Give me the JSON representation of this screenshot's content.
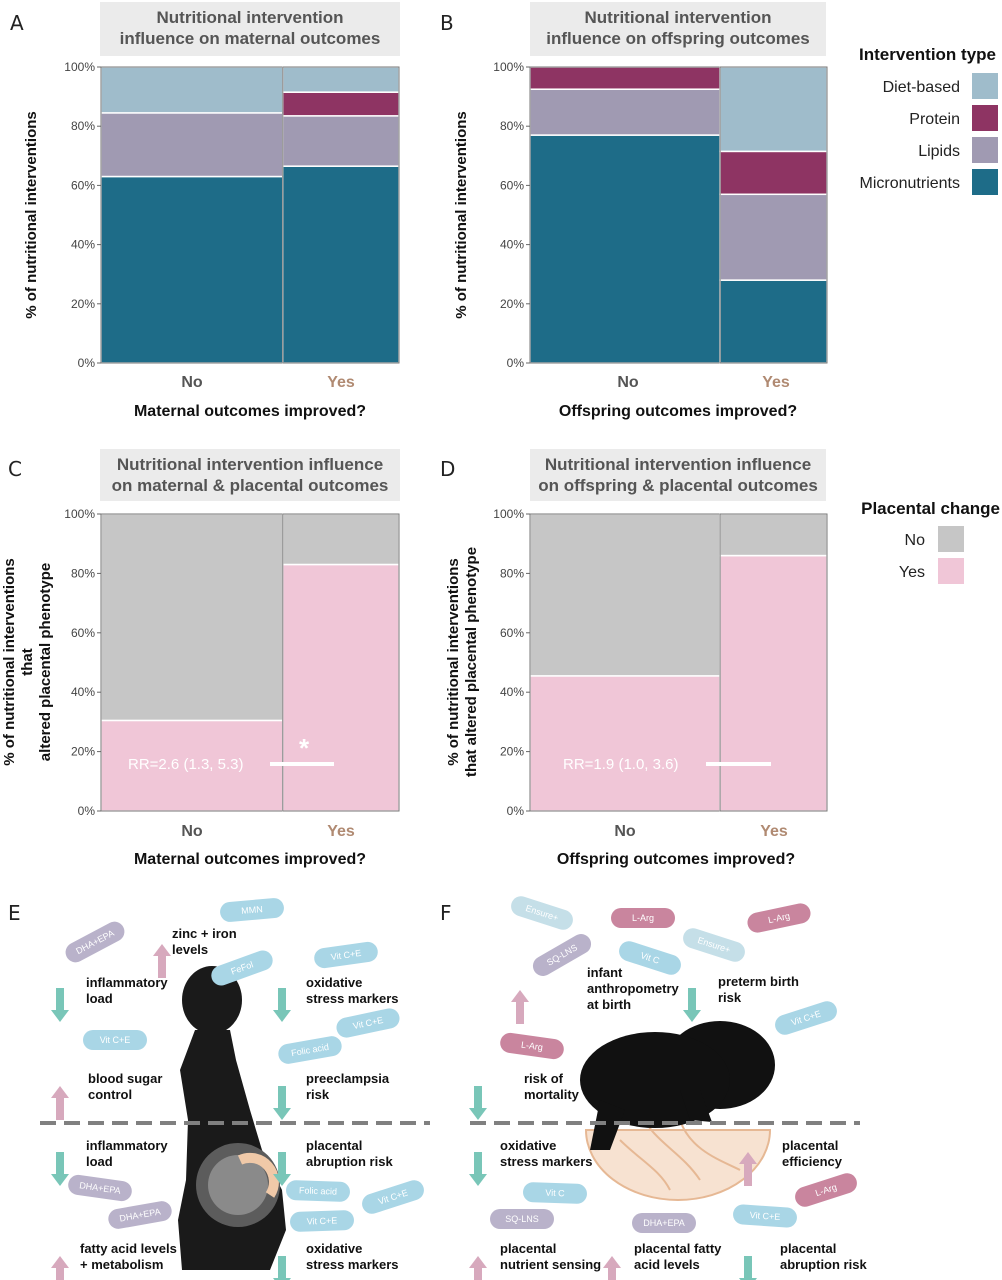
{
  "legend_intervention": {
    "title": "Intervention type",
    "items": [
      {
        "label": "Diet-based",
        "color": "#9fbccb"
      },
      {
        "label": "Protein",
        "color": "#8e3463"
      },
      {
        "label": "Lipids",
        "color": "#a09ab2"
      },
      {
        "label": "Micronutrients",
        "color": "#1e6c88"
      }
    ]
  },
  "legend_placental": {
    "title": "Placental change",
    "items": [
      {
        "label": "No",
        "color": "#c6c6c6"
      },
      {
        "label": "Yes",
        "color": "#f0c6d7"
      }
    ]
  },
  "chart_data": [
    {
      "panel": "A",
      "type": "bar",
      "stacked": true,
      "mosaic": true,
      "title": "Nutritional intervention influence on maternal outcomes",
      "title_lines": [
        "Nutritional intervention",
        "influence on maternal outcomes"
      ],
      "ylabel_lines": [
        "% of nutritional interventions"
      ],
      "xlabel": "Maternal outcomes improved?",
      "categories": [
        "No",
        "Yes"
      ],
      "category_widths": [
        0.61,
        0.39
      ],
      "y_ticks": [
        "0%",
        "20%",
        "40%",
        "60%",
        "80%",
        "100%"
      ],
      "ylim": [
        0,
        100
      ],
      "series": [
        {
          "name": "Micronutrients",
          "values": [
            63,
            66.5
          ]
        },
        {
          "name": "Lipids",
          "values": [
            21.5,
            17
          ]
        },
        {
          "name": "Protein",
          "values": [
            0,
            8
          ]
        },
        {
          "name": "Diet-based",
          "values": [
            15.5,
            8.5
          ]
        }
      ]
    },
    {
      "panel": "B",
      "type": "bar",
      "stacked": true,
      "mosaic": true,
      "title": "Nutritional intervention influence on offspring outcomes",
      "title_lines": [
        "Nutritional intervention",
        "influence on offspring outcomes"
      ],
      "ylabel_lines": [
        "% of nutritional interventions"
      ],
      "xlabel": "Offspring outcomes improved?",
      "categories": [
        "No",
        "Yes"
      ],
      "category_widths": [
        0.64,
        0.36
      ],
      "y_ticks": [
        "0%",
        "20%",
        "40%",
        "60%",
        "80%",
        "100%"
      ],
      "ylim": [
        0,
        100
      ],
      "series": [
        {
          "name": "Micronutrients",
          "values": [
            77,
            28
          ]
        },
        {
          "name": "Lipids",
          "values": [
            15.5,
            29
          ]
        },
        {
          "name": "Protein",
          "values": [
            7.5,
            14.5
          ]
        },
        {
          "name": "Diet-based",
          "values": [
            0,
            28.5
          ]
        }
      ]
    },
    {
      "panel": "C",
      "type": "bar",
      "stacked": true,
      "mosaic": true,
      "title": "Nutritional intervention influence on maternal & placental outcomes",
      "title_lines": [
        "Nutritional intervention influence",
        "on maternal & placental outcomes"
      ],
      "ylabel_lines": [
        "% of nutritional interventions",
        "that",
        "altered placental phenotype"
      ],
      "xlabel": "Maternal outcomes improved?",
      "categories": [
        "No",
        "Yes"
      ],
      "category_widths": [
        0.61,
        0.39
      ],
      "y_ticks": [
        "0%",
        "20%",
        "40%",
        "60%",
        "80%",
        "100%"
      ],
      "ylim": [
        0,
        100
      ],
      "series": [
        {
          "name": "Yes",
          "values": [
            30.5,
            83
          ]
        },
        {
          "name": "No",
          "values": [
            69.5,
            17
          ]
        }
      ],
      "annotation": "RR=2.6 (1.3, 5.3)",
      "significance": "*"
    },
    {
      "panel": "D",
      "type": "bar",
      "stacked": true,
      "mosaic": true,
      "title": "Nutritional intervention influence on offspring & placental outcomes",
      "title_lines": [
        "Nutritional intervention influence",
        "on offspring & placental outcomes"
      ],
      "ylabel_lines": [
        "% of nutritional interventions",
        "that altered placental phenotype"
      ],
      "xlabel": "Offspring outcomes improved?",
      "categories": [
        "No",
        "Yes"
      ],
      "category_widths": [
        0.64,
        0.36
      ],
      "y_ticks": [
        "0%",
        "20%",
        "40%",
        "60%",
        "80%",
        "100%"
      ],
      "ylim": [
        0,
        100
      ],
      "series": [
        {
          "name": "Yes",
          "values": [
            45.5,
            86
          ]
        },
        {
          "name": "No",
          "values": [
            54.5,
            14
          ]
        }
      ],
      "annotation": "RR=1.9 (1.0, 3.6)",
      "significance": ""
    }
  ],
  "panel_e": {
    "letter": "E",
    "pills": [
      "MMN",
      "DHA+EPA",
      "FeFol",
      "Vit C+E",
      "Vit C+E",
      "Vit C+E",
      "Folic acid",
      "DHA+EPA",
      "DHA+EPA",
      "Folic acid",
      "Vit C+E",
      "Vit C+E"
    ],
    "effects": [
      {
        "lines": [
          "zinc + iron",
          "levels"
        ],
        "direction": "up"
      },
      {
        "lines": [
          "inflammatory",
          "load"
        ],
        "direction": "down"
      },
      {
        "lines": [
          "oxidative",
          "stress markers"
        ],
        "direction": "down"
      },
      {
        "lines": [
          "blood sugar",
          "control"
        ],
        "direction": "up"
      },
      {
        "lines": [
          "preeclampsia",
          "risk"
        ],
        "direction": "down"
      },
      {
        "lines": [
          "inflammatory",
          "load"
        ],
        "direction": "down"
      },
      {
        "lines": [
          "placental",
          "abruption risk"
        ],
        "direction": "down"
      },
      {
        "lines": [
          "fatty acid levels",
          "+ metabolism"
        ],
        "direction": "up"
      },
      {
        "lines": [
          "oxidative",
          "stress markers"
        ],
        "direction": "down"
      }
    ]
  },
  "panel_f": {
    "letter": "F",
    "pills": [
      "Ensure+",
      "L-Arg",
      "L-Arg",
      "SQ-LNS",
      "Vit C",
      "Ensure+",
      "Vit C+E",
      "L-Arg",
      "Vit C",
      "SQ-LNS",
      "DHA+EPA",
      "Vit C+E",
      "L-Arg"
    ],
    "effects": [
      {
        "lines": [
          "infant",
          "anthropometry",
          "at birth"
        ],
        "direction": "up"
      },
      {
        "lines": [
          "preterm birth",
          "risk"
        ],
        "direction": "down"
      },
      {
        "lines": [
          "risk of",
          "mortality"
        ],
        "direction": "down"
      },
      {
        "lines": [
          "oxidative",
          "stress markers"
        ],
        "direction": "down"
      },
      {
        "lines": [
          "placental",
          "efficiency"
        ],
        "direction": "up"
      },
      {
        "lines": [
          "placental",
          "nutrient sensing"
        ],
        "direction": "up"
      },
      {
        "lines": [
          "placental fatty",
          "acid levels"
        ],
        "direction": "up"
      },
      {
        "lines": [
          "placental",
          "abruption risk"
        ],
        "direction": "down"
      }
    ]
  }
}
